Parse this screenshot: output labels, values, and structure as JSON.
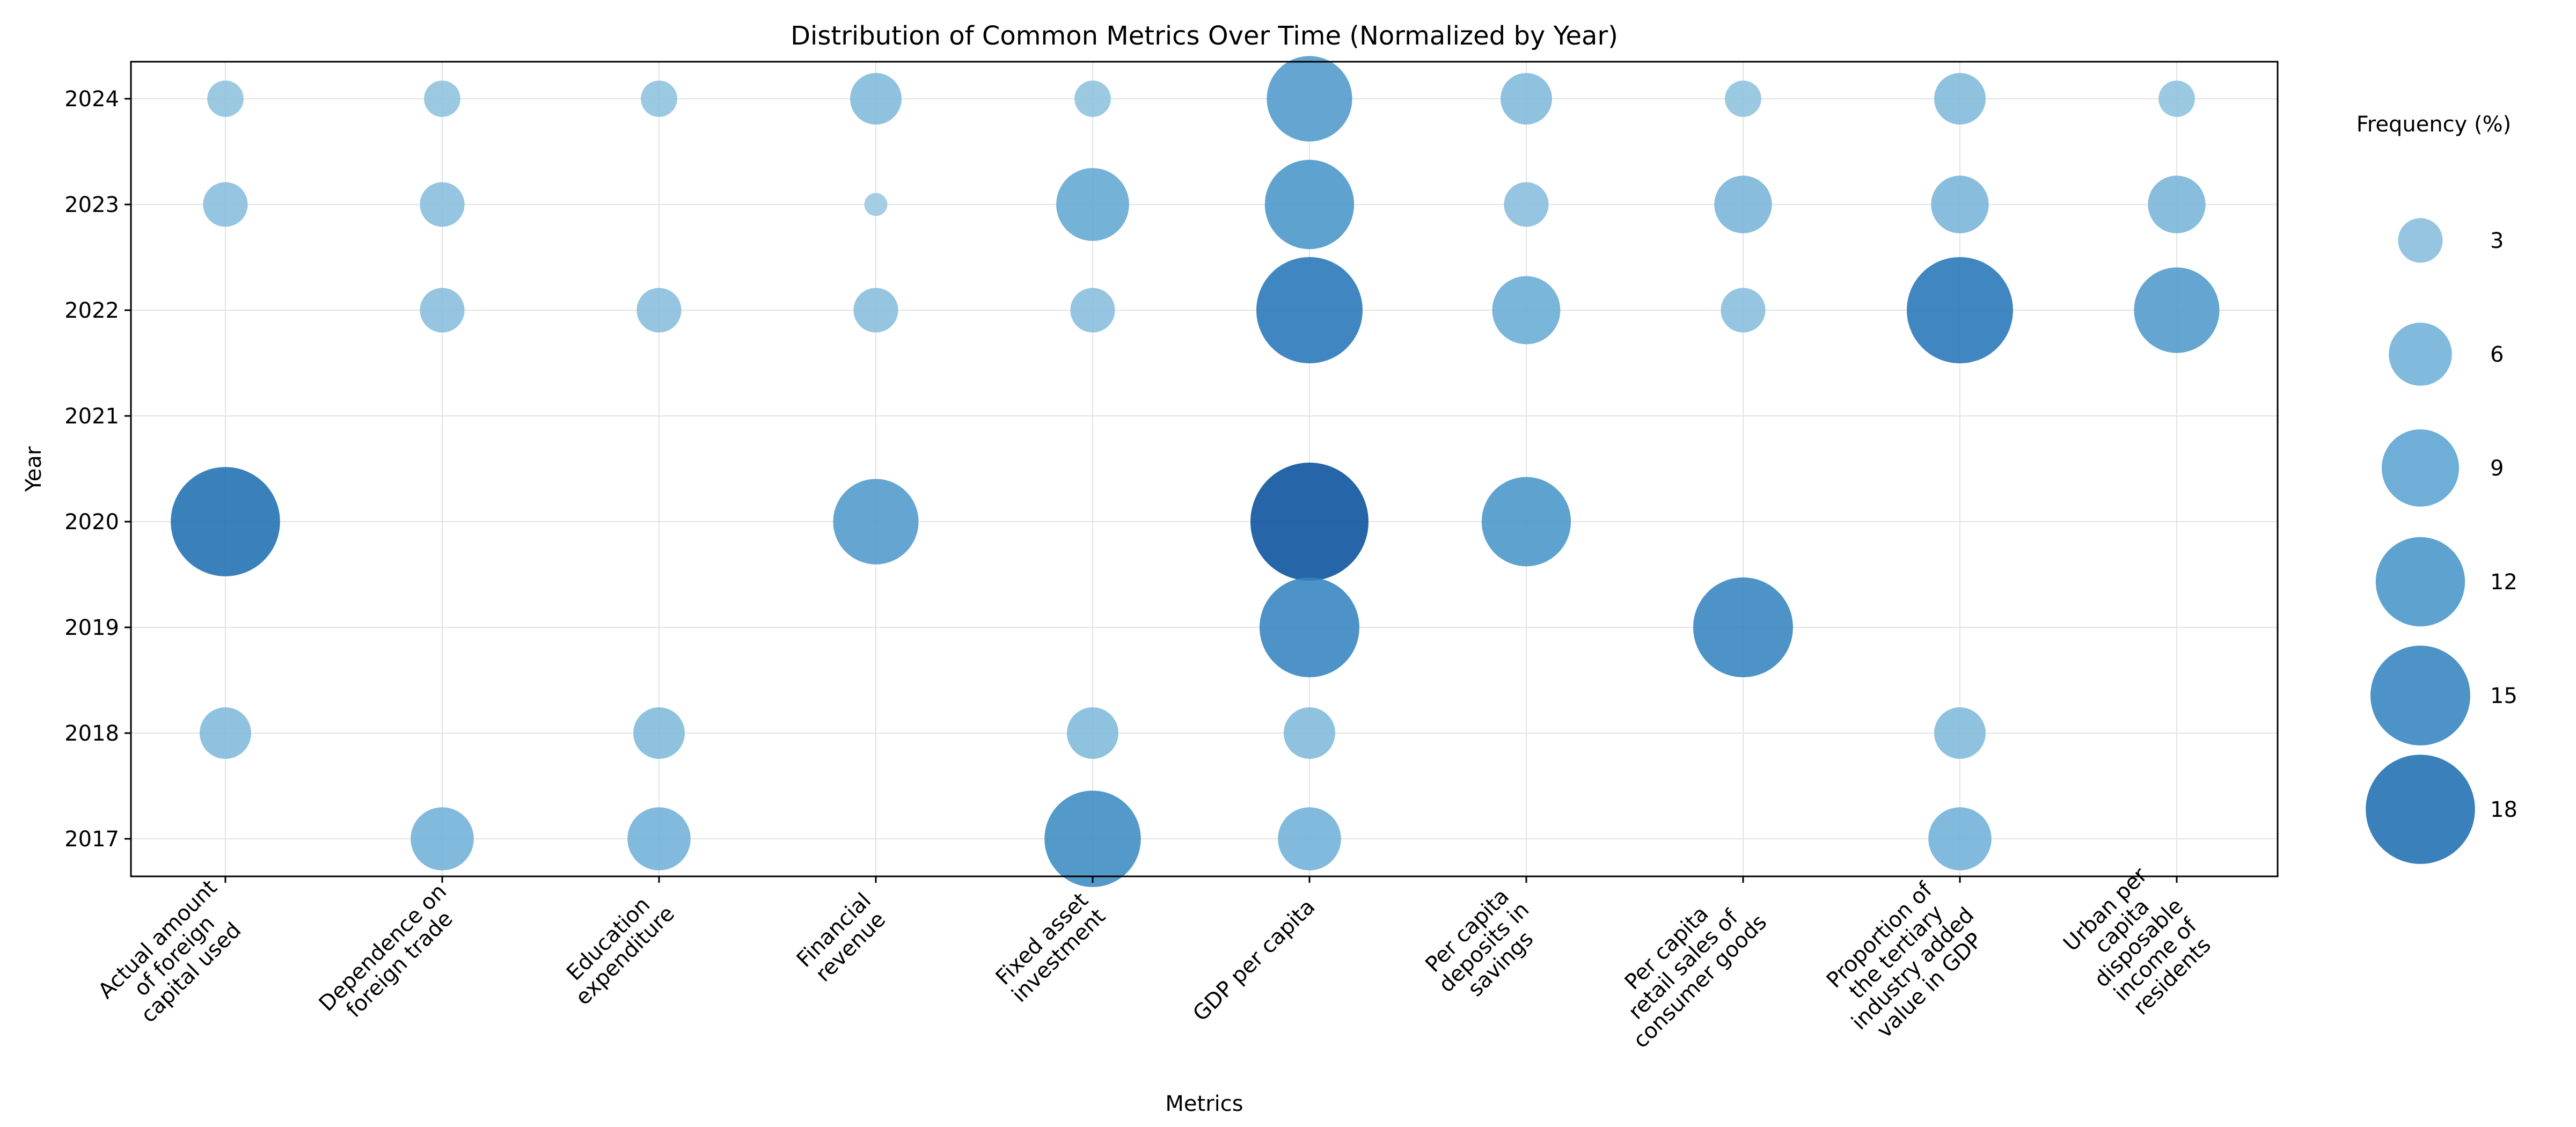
{
  "chart_data": {
    "type": "scatter",
    "subtype": "bubble",
    "title": "Distribution of Common Metrics Over Time (Normalized by Year)",
    "xlabel": "Metrics",
    "ylabel": "Year",
    "categories": [
      "Actual amount\nof foreign\ncapital used",
      "Dependence on\nforeign trade",
      "Education\nexpenditure",
      "Financial\nrevenue",
      "Fixed asset\ninvestment",
      "GDP per capita",
      "Per capita\ndeposits in\nsavings",
      "Per capita\nretail sales of\nconsumer goods",
      "Proportion of\nthe tertiary\nindustry added\nvalue in GDP",
      "Urban per\ncapita\ndisposable\nincome of\nresidents"
    ],
    "years": [
      2017,
      2018,
      2019,
      2020,
      2021,
      2022,
      2023,
      2024
    ],
    "grid": true,
    "color_scale": "Blues",
    "points": [
      {
        "metric": 0,
        "year": 2024,
        "value": 2
      },
      {
        "metric": 0,
        "year": 2023,
        "value": 3
      },
      {
        "metric": 0,
        "year": 2020,
        "value": 18
      },
      {
        "metric": 0,
        "year": 2018,
        "value": 4
      },
      {
        "metric": 1,
        "year": 2024,
        "value": 2
      },
      {
        "metric": 1,
        "year": 2023,
        "value": 3
      },
      {
        "metric": 1,
        "year": 2022,
        "value": 3
      },
      {
        "metric": 1,
        "year": 2017,
        "value": 6
      },
      {
        "metric": 2,
        "year": 2024,
        "value": 2
      },
      {
        "metric": 2,
        "year": 2022,
        "value": 3
      },
      {
        "metric": 2,
        "year": 2018,
        "value": 4
      },
      {
        "metric": 2,
        "year": 2017,
        "value": 6
      },
      {
        "metric": 3,
        "year": 2024,
        "value": 4
      },
      {
        "metric": 3,
        "year": 2023,
        "value": 0.8
      },
      {
        "metric": 3,
        "year": 2022,
        "value": 3
      },
      {
        "metric": 3,
        "year": 2020,
        "value": 11
      },
      {
        "metric": 4,
        "year": 2024,
        "value": 2
      },
      {
        "metric": 4,
        "year": 2023,
        "value": 8
      },
      {
        "metric": 4,
        "year": 2022,
        "value": 3
      },
      {
        "metric": 4,
        "year": 2018,
        "value": 4
      },
      {
        "metric": 4,
        "year": 2017,
        "value": 14
      },
      {
        "metric": 5,
        "year": 2024,
        "value": 11
      },
      {
        "metric": 5,
        "year": 2023,
        "value": 12
      },
      {
        "metric": 5,
        "year": 2022,
        "value": 17
      },
      {
        "metric": 5,
        "year": 2020,
        "value": 21
      },
      {
        "metric": 5,
        "year": 2019,
        "value": 15
      },
      {
        "metric": 5,
        "year": 2018,
        "value": 4
      },
      {
        "metric": 5,
        "year": 2017,
        "value": 6
      },
      {
        "metric": 6,
        "year": 2024,
        "value": 4
      },
      {
        "metric": 6,
        "year": 2023,
        "value": 3
      },
      {
        "metric": 6,
        "year": 2022,
        "value": 7
      },
      {
        "metric": 6,
        "year": 2020,
        "value": 12
      },
      {
        "metric": 7,
        "year": 2024,
        "value": 2
      },
      {
        "metric": 7,
        "year": 2023,
        "value": 5
      },
      {
        "metric": 7,
        "year": 2022,
        "value": 3
      },
      {
        "metric": 7,
        "year": 2019,
        "value": 15
      },
      {
        "metric": 8,
        "year": 2024,
        "value": 4
      },
      {
        "metric": 8,
        "year": 2023,
        "value": 5
      },
      {
        "metric": 8,
        "year": 2022,
        "value": 17
      },
      {
        "metric": 8,
        "year": 2018,
        "value": 4
      },
      {
        "metric": 8,
        "year": 2017,
        "value": 6
      },
      {
        "metric": 9,
        "year": 2024,
        "value": 2
      },
      {
        "metric": 9,
        "year": 2023,
        "value": 5
      },
      {
        "metric": 9,
        "year": 2022,
        "value": 11
      }
    ],
    "legend": {
      "title": "Frequency (%)",
      "values": [
        3,
        6,
        9,
        12,
        15,
        18
      ],
      "placement": "right"
    },
    "size_max_value": 21
  }
}
